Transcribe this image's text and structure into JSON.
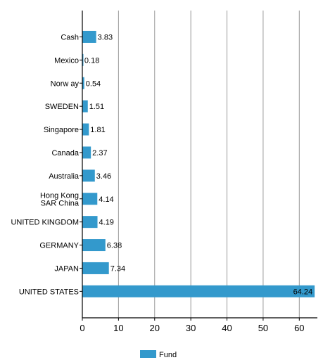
{
  "chart_data": {
    "type": "bar",
    "orientation": "horizontal",
    "categories": [
      "Cash",
      "Mexico",
      "Norw ay",
      "SWEDEN",
      "Singapore",
      "Canada",
      "Australia",
      "Hong Kong SAR China",
      "UNITED KINGDOM",
      "GERMANY",
      "JAPAN",
      "UNITED STATES"
    ],
    "category_lines": [
      [
        "Cash"
      ],
      [
        "Mexico"
      ],
      [
        "Norw ay"
      ],
      [
        "SWEDEN"
      ],
      [
        "Singapore"
      ],
      [
        "Canada"
      ],
      [
        "Australia"
      ],
      [
        "Hong Kong",
        "SAR China"
      ],
      [
        "UNITED KINGDOM"
      ],
      [
        "GERMANY"
      ],
      [
        "JAPAN"
      ],
      [
        "UNITED STATES"
      ]
    ],
    "series": [
      {
        "name": "Fund",
        "values": [
          3.83,
          0.18,
          0.54,
          1.51,
          1.81,
          2.37,
          3.46,
          4.14,
          4.19,
          6.38,
          7.34,
          64.24
        ],
        "value_labels": [
          "3.83",
          "0.18",
          "0.54",
          "1.51",
          "1.81",
          "2.37",
          "3.46",
          "4.14",
          "4.19",
          "6.38",
          "7.34",
          "64.24"
        ],
        "color": "#3399cc"
      }
    ],
    "xlim": [
      0,
      65
    ],
    "xticks": [
      0,
      10,
      20,
      30,
      40,
      50,
      60
    ],
    "grid": true,
    "legend": "bottom-left",
    "colors": {
      "bar": "#3399cc",
      "grid": "#999999",
      "axis": "#000000"
    }
  }
}
